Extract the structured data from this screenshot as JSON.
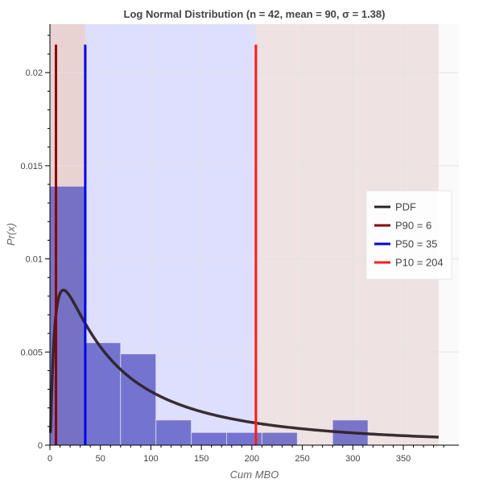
{
  "chart_data": {
    "type": "histogram",
    "title": "Log Normal Distribution (n = 42, mean = 90, σ = 1.38)",
    "xlabel": "Cum MBO",
    "ylabel": "Pr(x)",
    "xlim": [
      0,
      405
    ],
    "ylim": [
      0,
      0.0226
    ],
    "x_ticks": [
      0,
      50,
      100,
      150,
      200,
      250,
      300,
      350
    ],
    "y_ticks": [
      0,
      0.005,
      0.01,
      0.015,
      0.02
    ],
    "x_tick_labels": [
      "0",
      "50",
      "100",
      "150",
      "200",
      "250",
      "300",
      "350"
    ],
    "y_tick_labels": [
      "0",
      "0.005",
      "0.01",
      "0.015",
      "0.02"
    ],
    "grid": true,
    "legend_position": "right",
    "histogram": {
      "color": "#5050c0",
      "bins": [
        {
          "x0": 0,
          "x1": 35,
          "density": 0.0139
        },
        {
          "x0": 35,
          "x1": 70,
          "density": 0.0055
        },
        {
          "x0": 70,
          "x1": 105,
          "density": 0.0049
        },
        {
          "x0": 105,
          "x1": 140,
          "density": 0.00135
        },
        {
          "x0": 140,
          "x1": 175,
          "density": 0.00068
        },
        {
          "x0": 175,
          "x1": 210,
          "density": 0.00068
        },
        {
          "x0": 210,
          "x1": 245,
          "density": 0.00068
        },
        {
          "x0": 245,
          "x1": 280,
          "density": 0
        },
        {
          "x0": 280,
          "x1": 315,
          "density": 0.00135
        }
      ]
    },
    "shaded_regions": [
      {
        "x0": 0,
        "x1": 35,
        "color": "#e8d2d2"
      },
      {
        "x0": 35,
        "x1": 204,
        "color": "#dedeff"
      },
      {
        "x0": 204,
        "x1": 385,
        "color": "#eee2e2"
      }
    ],
    "pdf": {
      "mu": 4.5,
      "sigma": 1.38,
      "x_max": 385,
      "color": "#2e2329"
    },
    "vlines": [
      {
        "x": 6,
        "y_top": 0.0215,
        "color": "#8b0000"
      },
      {
        "x": 35,
        "y_top": 0.0215,
        "color": "#0000ee"
      },
      {
        "x": 204,
        "y_top": 0.0215,
        "color": "#ff1a1a"
      }
    ],
    "legend": [
      {
        "label": "PDF",
        "color": "#2e2329"
      },
      {
        "label": "P90 = 6",
        "color": "#8b0000"
      },
      {
        "label": "P50 = 35",
        "color": "#0000ee"
      },
      {
        "label": "P10 = 204",
        "color": "#ff1a1a"
      }
    ]
  }
}
